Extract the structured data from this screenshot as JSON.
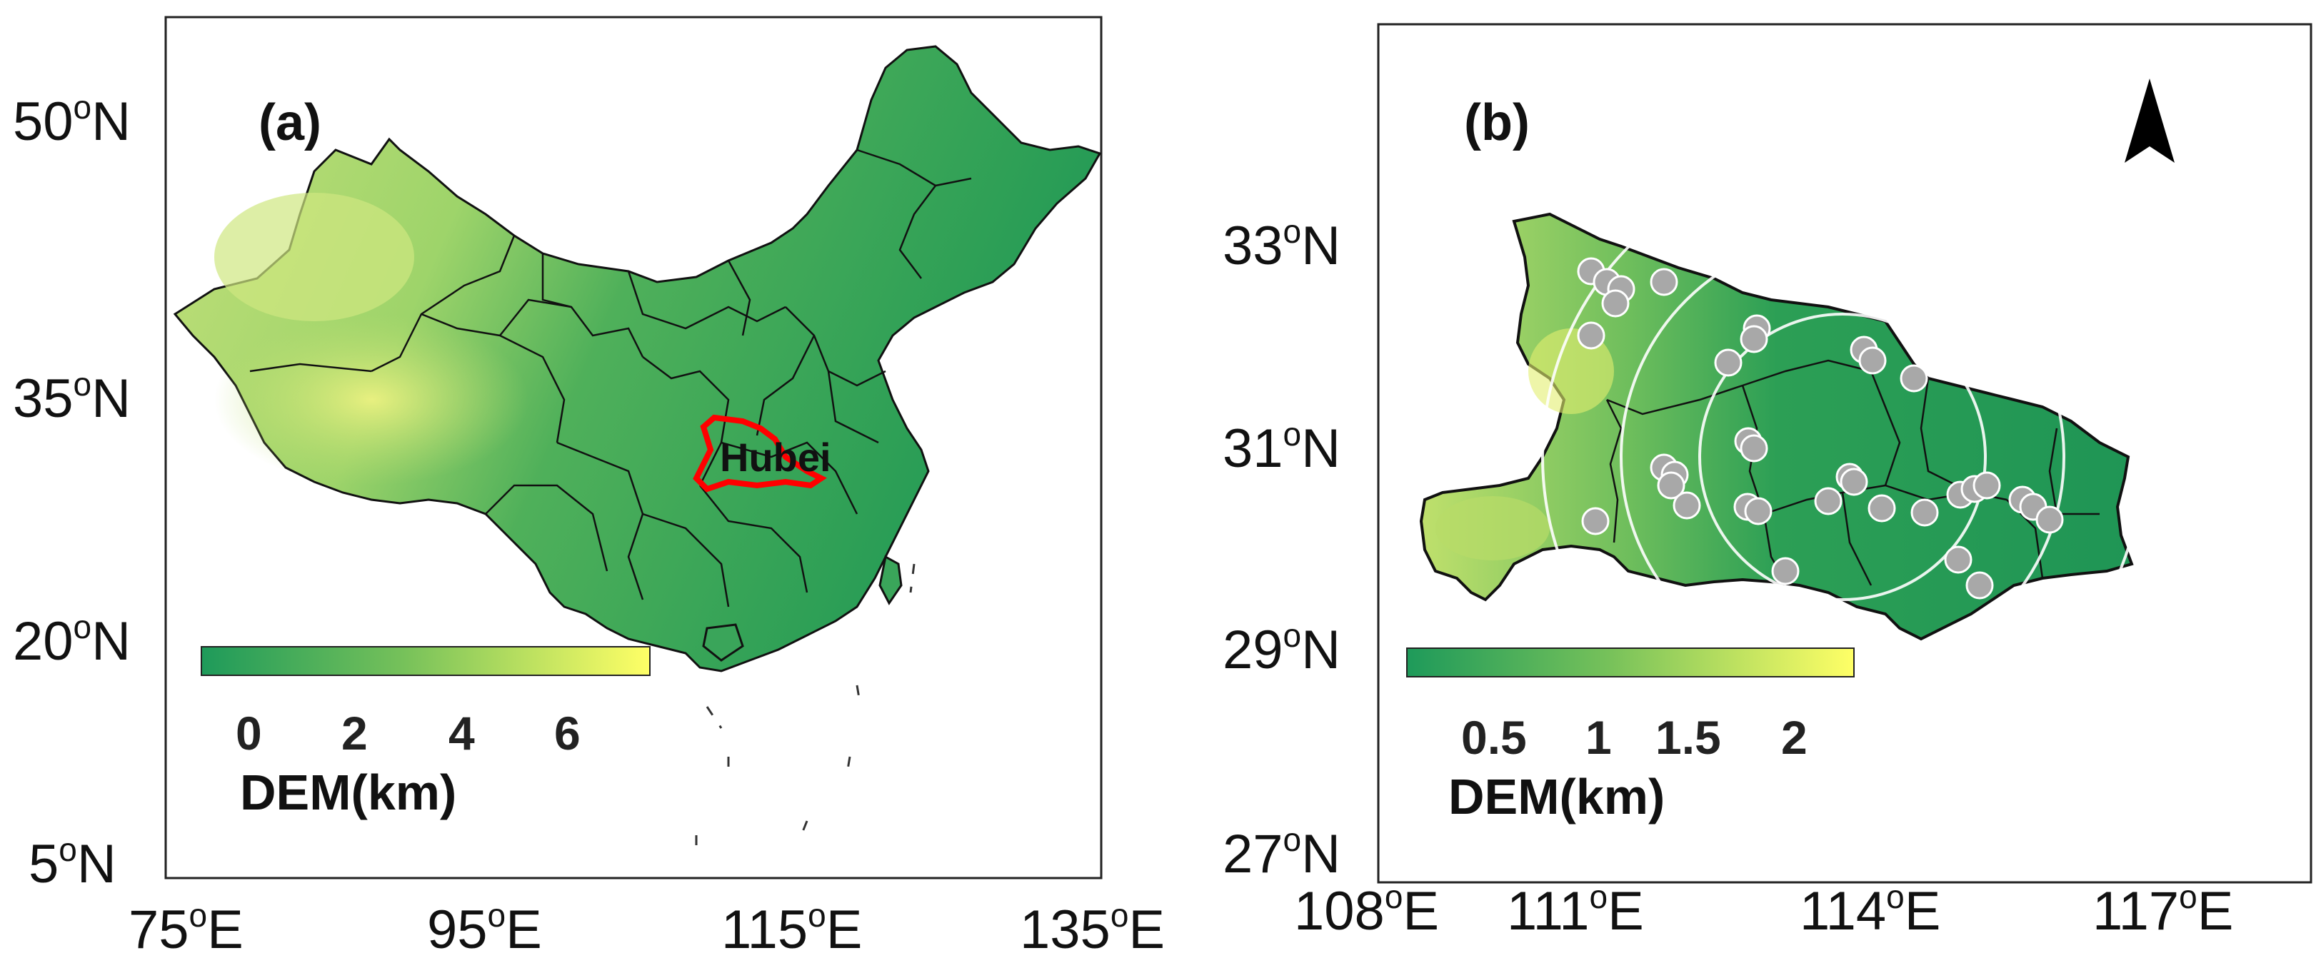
{
  "panel_a": {
    "label": "(a)",
    "y_ticks": [
      "50",
      "35",
      "20",
      "5"
    ],
    "y_suffix": "N",
    "x_ticks": [
      "75",
      "95",
      "115",
      "135"
    ],
    "x_suffix": "E",
    "degree_symbol": "o",
    "highlight_label": "Hubei",
    "highlight_color": "#ff0000",
    "colorbar": {
      "ticks": [
        "0",
        "2",
        "4",
        "6"
      ],
      "title": "DEM(km)",
      "color_low": "#1e9a5a",
      "color_high": "#ffff66"
    }
  },
  "panel_b": {
    "label": "(b)",
    "y_ticks": [
      "33",
      "31",
      "29",
      "27"
    ],
    "y_suffix": "N",
    "x_ticks": [
      "108",
      "111",
      "114",
      "117"
    ],
    "x_suffix": "E",
    "degree_symbol": "o",
    "north_arrow": "north-arrow-icon",
    "colorbar": {
      "ticks": [
        "0.5",
        "1",
        "1.5",
        "2"
      ],
      "title": "DEM(km)",
      "color_low": "#1e9a5a",
      "color_high": "#ffff66"
    },
    "station_color": "#a8a8a8"
  }
}
